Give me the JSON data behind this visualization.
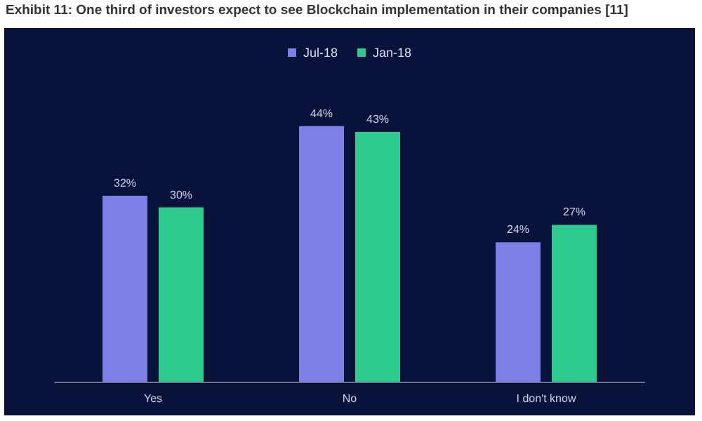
{
  "chart_data": {
    "type": "bar",
    "title": "Exhibit 11: One third of investors expect to see Blockchain implementation in their companies [11]",
    "categories": [
      "Yes",
      "No",
      "I don't know"
    ],
    "series": [
      {
        "name": "Jul-18",
        "color": "#7f7fe8",
        "values": [
          32,
          44,
          24
        ],
        "value_labels": [
          "32%",
          "44%",
          "24%"
        ]
      },
      {
        "name": "Jan-18",
        "color": "#2fcb8e",
        "values": [
          30,
          43,
          27
        ],
        "value_labels": [
          "30%",
          "43%",
          "27%"
        ]
      }
    ],
    "legend": "top"
  }
}
